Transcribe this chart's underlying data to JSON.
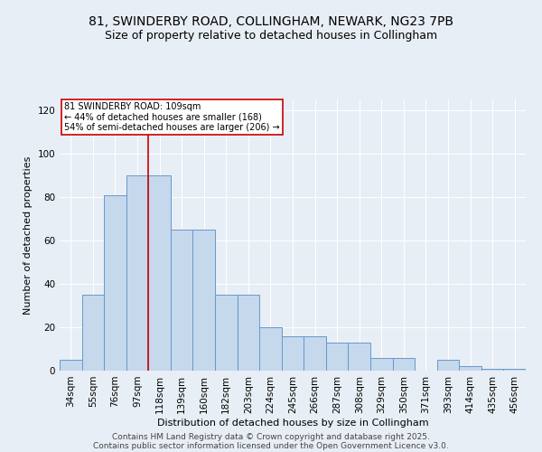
{
  "title_line1": "81, SWINDERBY ROAD, COLLINGHAM, NEWARK, NG23 7PB",
  "title_line2": "Size of property relative to detached houses in Collingham",
  "xlabel": "Distribution of detached houses by size in Collingham",
  "ylabel": "Number of detached properties",
  "categories": [
    "34sqm",
    "55sqm",
    "76sqm",
    "97sqm",
    "118sqm",
    "139sqm",
    "160sqm",
    "182sqm",
    "203sqm",
    "224sqm",
    "245sqm",
    "266sqm",
    "287sqm",
    "308sqm",
    "329sqm",
    "350sqm",
    "371sqm",
    "393sqm",
    "414sqm",
    "435sqm",
    "456sqm"
  ],
  "values": [
    5,
    35,
    81,
    90,
    90,
    65,
    65,
    35,
    35,
    20,
    16,
    16,
    13,
    13,
    6,
    6,
    0,
    5,
    2,
    1,
    1
  ],
  "bar_color": "#c5d8ec",
  "bar_edge_color": "#6699cc",
  "background_color": "#e8eef5",
  "grid_color": "#ffffff",
  "red_line_index": 3.5,
  "annotation_text": "81 SWINDERBY ROAD: 109sqm\n← 44% of detached houses are smaller (168)\n54% of semi-detached houses are larger (206) →",
  "annotation_box_color": "white",
  "annotation_box_edge_color": "#cc0000",
  "red_line_color": "#cc0000",
  "ylim": [
    0,
    125
  ],
  "yticks": [
    0,
    20,
    40,
    60,
    80,
    100,
    120
  ],
  "footer_line1": "Contains HM Land Registry data © Crown copyright and database right 2025.",
  "footer_line2": "Contains public sector information licensed under the Open Government Licence v3.0.",
  "title_fontsize": 10,
  "subtitle_fontsize": 9,
  "axis_label_fontsize": 8,
  "tick_fontsize": 7.5,
  "annotation_fontsize": 7,
  "footer_fontsize": 6.5
}
